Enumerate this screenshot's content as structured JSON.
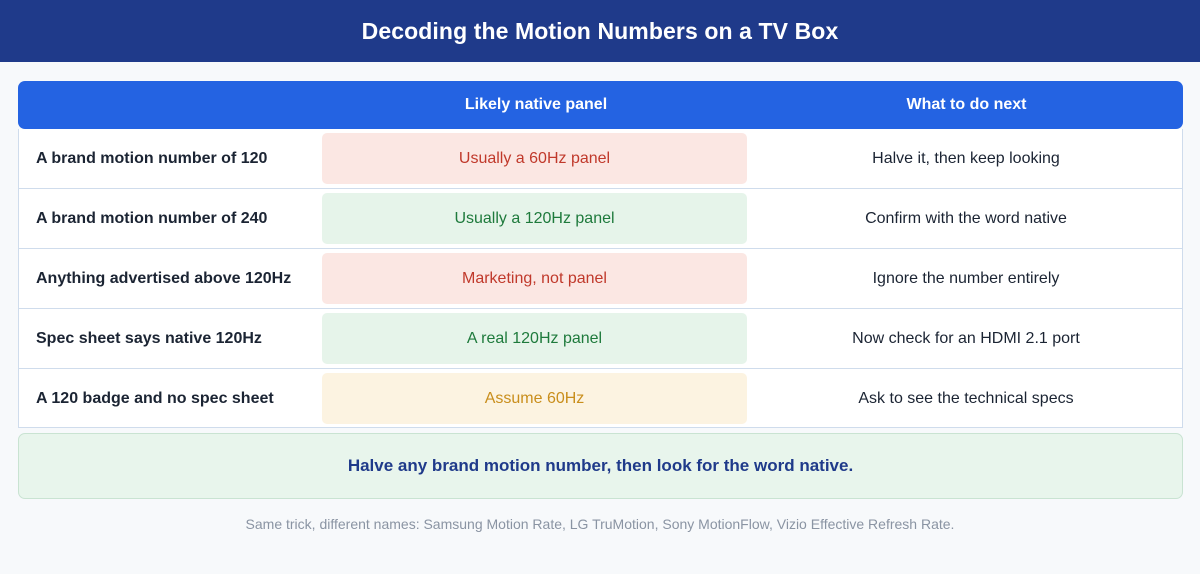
{
  "title": "Decoding the Motion Numbers on a TV Box",
  "table": {
    "headers": [
      "",
      "Likely native panel",
      "What to do next"
    ],
    "rows": [
      {
        "condition": "A brand motion number of 120",
        "panel": "Usually a 60Hz panel",
        "panel_status": "red",
        "action": "Halve it, then keep looking"
      },
      {
        "condition": "A brand motion number of 240",
        "panel": "Usually a 120Hz panel",
        "panel_status": "green",
        "action": "Confirm with the word native"
      },
      {
        "condition": "Anything advertised above 120Hz",
        "panel": "Marketing, not panel",
        "panel_status": "red",
        "action": "Ignore the number entirely"
      },
      {
        "condition": "Spec sheet says native 120Hz",
        "panel": "A real 120Hz panel",
        "panel_status": "green",
        "action": "Now check for an HDMI 2.1 port"
      },
      {
        "condition": "A 120 badge and no spec sheet",
        "panel": "Assume 60Hz",
        "panel_status": "amber",
        "action": "Ask to see the technical specs"
      }
    ]
  },
  "summary": "Halve any brand motion number, then look for the word native.",
  "footnote": "Same trick, different names: Samsung Motion Rate, LG TruMotion, Sony MotionFlow, Vizio Effective Refresh Rate.",
  "colors": {
    "title_bar": "#1f3a8a",
    "header": "#2463e2",
    "red_bg": "#fbe7e3",
    "red_text": "#c0392b",
    "green_bg": "#e6f4ea",
    "green_text": "#1e7a3c",
    "amber_bg": "#fcf3e1",
    "amber_text": "#c98e1c"
  }
}
